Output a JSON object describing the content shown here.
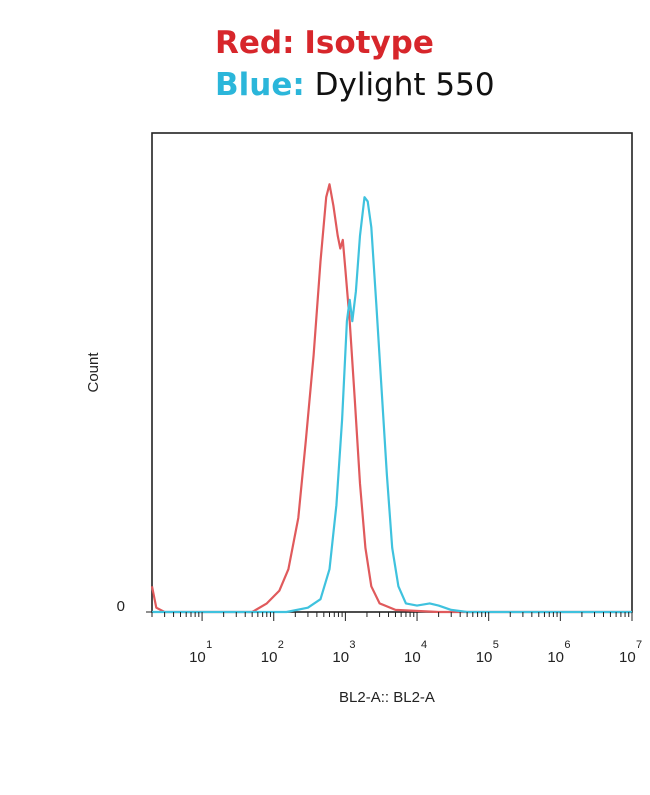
{
  "legend": {
    "red_label": "Red:",
    "red_value": "Isotype",
    "blue_label": "Blue:",
    "blue_value": "Dylight 550"
  },
  "colors": {
    "isotype": "#e05a5c",
    "dylight": "#3fc2de",
    "axis": "#222222"
  },
  "chart_data": {
    "type": "line",
    "x_scale": "log",
    "xlim": [
      2,
      10000000
    ],
    "ylim": [
      0,
      1.12
    ],
    "xlabel": "BL2-A:: BL2-A",
    "ylabel": "Count",
    "y_ticks": [
      {
        "value": 0,
        "label": "0"
      }
    ],
    "x_ticks": [
      {
        "value": 10,
        "base": "10",
        "exp": "1"
      },
      {
        "value": 100,
        "base": "10",
        "exp": "2"
      },
      {
        "value": 1000,
        "base": "10",
        "exp": "3"
      },
      {
        "value": 10000,
        "base": "10",
        "exp": "4"
      },
      {
        "value": 100000,
        "base": "10",
        "exp": "5"
      },
      {
        "value": 1000000,
        "base": "10",
        "exp": "6"
      },
      {
        "value": 10000000,
        "base": "10",
        "exp": "7"
      }
    ],
    "grid": false,
    "series": [
      {
        "name": "Isotype",
        "color": "#e05a5c",
        "points": [
          [
            2,
            0.06
          ],
          [
            2.3,
            0.01
          ],
          [
            3,
            0
          ],
          [
            50,
            0
          ],
          [
            80,
            0.02
          ],
          [
            120,
            0.05
          ],
          [
            160,
            0.1
          ],
          [
            220,
            0.22
          ],
          [
            280,
            0.4
          ],
          [
            360,
            0.6
          ],
          [
            450,
            0.82
          ],
          [
            540,
            0.97
          ],
          [
            600,
            1.0
          ],
          [
            680,
            0.95
          ],
          [
            780,
            0.88
          ],
          [
            850,
            0.85
          ],
          [
            920,
            0.87
          ],
          [
            1000,
            0.8
          ],
          [
            1150,
            0.68
          ],
          [
            1350,
            0.5
          ],
          [
            1600,
            0.3
          ],
          [
            1900,
            0.15
          ],
          [
            2300,
            0.06
          ],
          [
            3000,
            0.02
          ],
          [
            5000,
            0.005
          ],
          [
            20000,
            0
          ],
          [
            10000000,
            0
          ]
        ]
      },
      {
        "name": "Dylight 550",
        "color": "#3fc2de",
        "points": [
          [
            2,
            0
          ],
          [
            150,
            0
          ],
          [
            300,
            0.01
          ],
          [
            450,
            0.03
          ],
          [
            600,
            0.1
          ],
          [
            750,
            0.25
          ],
          [
            900,
            0.45
          ],
          [
            1050,
            0.68
          ],
          [
            1150,
            0.73
          ],
          [
            1250,
            0.68
          ],
          [
            1400,
            0.75
          ],
          [
            1600,
            0.88
          ],
          [
            1850,
            0.97
          ],
          [
            2050,
            0.96
          ],
          [
            2300,
            0.9
          ],
          [
            2700,
            0.72
          ],
          [
            3200,
            0.52
          ],
          [
            3800,
            0.32
          ],
          [
            4500,
            0.15
          ],
          [
            5500,
            0.06
          ],
          [
            7000,
            0.02
          ],
          [
            10000,
            0.015
          ],
          [
            15000,
            0.02
          ],
          [
            20000,
            0.015
          ],
          [
            30000,
            0.005
          ],
          [
            50000,
            0
          ],
          [
            10000000,
            0
          ]
        ]
      }
    ]
  }
}
